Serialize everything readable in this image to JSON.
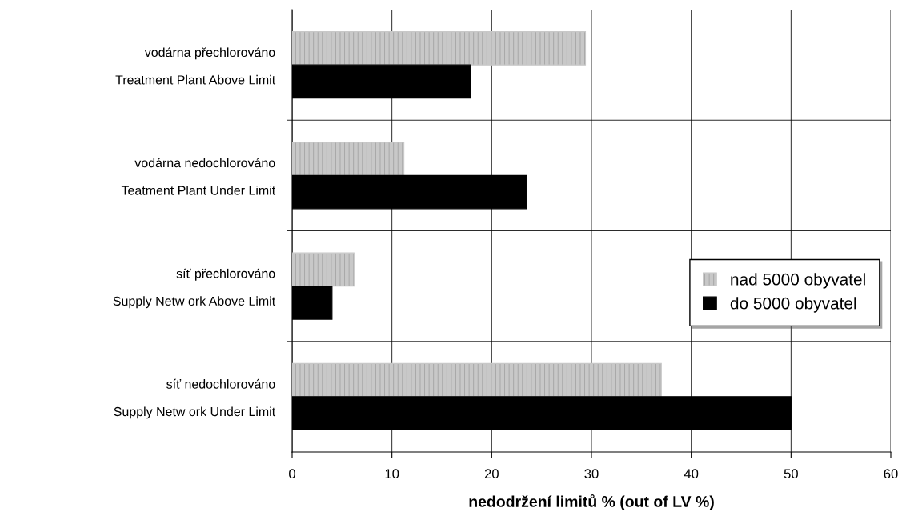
{
  "chart_data": {
    "type": "bar",
    "orientation": "horizontal",
    "categories": [
      "vodárna přechlorováno\n\nTreatment Plant Above Limit",
      "vodárna nedochlorováno\n\nTeatment Plant Under Limit",
      "síť přechlorováno\n\nSupply Netw ork Above Limit",
      "síť nedochlorováno\n\nSupply Netw ork Under Limit"
    ],
    "series": [
      {
        "name": "nad 5000 obyvatel",
        "color": "#c8c8c8",
        "values": [
          29.4,
          11.2,
          6.2,
          37.0
        ]
      },
      {
        "name": "do 5000 obyvatel",
        "color": "#000000",
        "values": [
          17.9,
          23.5,
          4.0,
          50.0
        ]
      }
    ],
    "xlim": [
      0,
      60
    ],
    "xticks": [
      0,
      10,
      20,
      30,
      40,
      50,
      60
    ],
    "xlabel": "nedodržení limitů % (out of LV %)",
    "grid": true,
    "legend": "right"
  }
}
